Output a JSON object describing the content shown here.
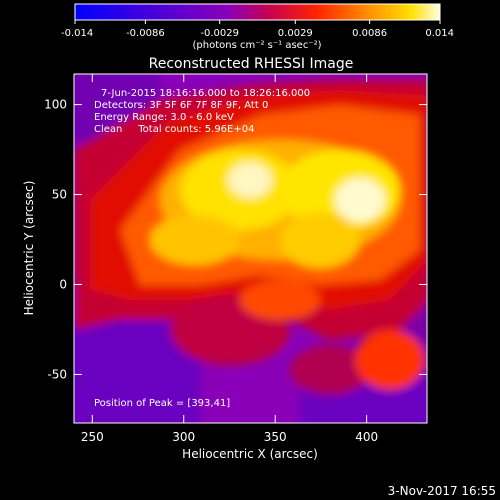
{
  "chart_data": {
    "type": "heatmap",
    "title": "Reconstructed RHESSI Image",
    "xlabel": "Heliocentric X (arcsec)",
    "ylabel": "Heliocentric Y (arcsec)",
    "xlim": [
      240,
      433
    ],
    "ylim": [
      -77,
      117
    ],
    "x_ticks": [
      250,
      300,
      350,
      400
    ],
    "y_ticks": [
      -50,
      0,
      50,
      100
    ],
    "colorbar": {
      "min": -0.014,
      "max": 0.014,
      "ticks": [
        "-0.014",
        "-0.0086",
        "-0.0029",
        "0.0029",
        "0.0086",
        "0.014"
      ],
      "tick_values": [
        -0.014,
        -0.0086,
        -0.0029,
        0.0029,
        0.0086,
        0.014
      ],
      "unit_label": "(photons cm⁻² s⁻¹ asec⁻²)"
    },
    "annotations": {
      "time_range": "7-Jun-2015 18:16:16.000 to 18:26:16.000",
      "detectors": "Detectors: 3F 5F 6F 7F 8F 9F, Att 0",
      "energy_range": "Energy Range: 3.0 - 6.0 keV",
      "clean": "Clean     Total counts: 5.96E+04",
      "peak_position": "Position of Peak = [393,41]"
    },
    "peak": [
      393,
      41
    ],
    "footer_date": "3-Nov-2017 16:55"
  }
}
